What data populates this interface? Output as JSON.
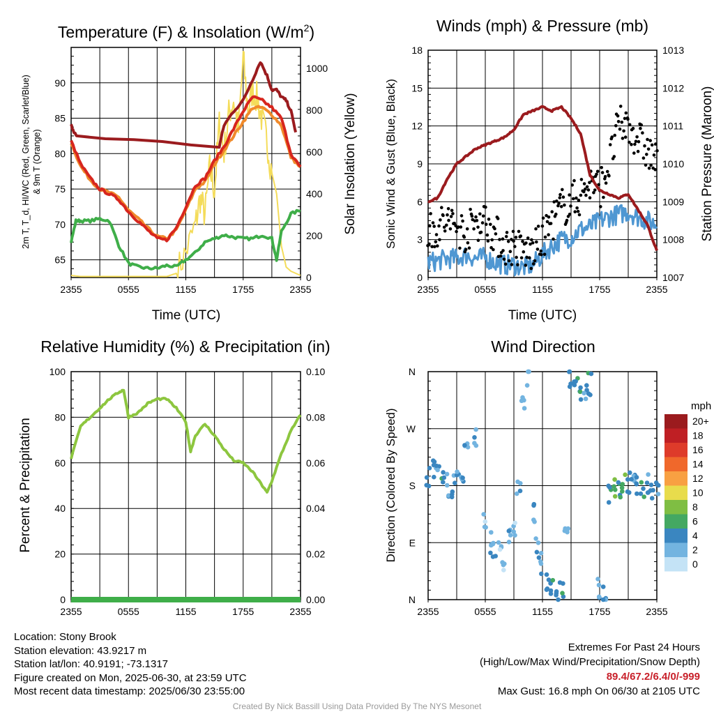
{
  "panels": {
    "temp": {
      "title": "Temperature (F) & Insolation (W/m",
      "title_sup": "2",
      "title_close": ")",
      "ylabel_left_line1": "2m T, T_d, HI/WC (Red, Green, Scarlet/Blue)",
      "ylabel_left_line2": "& 9m T (Orange)",
      "ylabel_right": "Solar Insolation (Yellow)",
      "xlabel": "Time (UTC)"
    },
    "wind": {
      "title": "Winds (mph) & Pressure (mb)",
      "ylabel_left": "Sonic Wind & Gust (Blue, Black)",
      "ylabel_right": "Station Pressure (Maroon)",
      "xlabel": "Time (UTC)"
    },
    "rh": {
      "title": "Relative Humidity (%) & Precipitation (in)",
      "ylabel_left": "Percent & Precipitation"
    },
    "dir": {
      "title": "Wind Direction",
      "ylabel_left": "Direction (Colored By Speed)",
      "legend_title": "mph",
      "legend_labels": [
        "20+",
        "18",
        "16",
        "14",
        "12",
        "10",
        "8",
        "6",
        "4",
        "2",
        "0"
      ],
      "legend_colors": [
        "#9b1b1e",
        "#bf1f24",
        "#de3b2a",
        "#f0682b",
        "#f8a042",
        "#e8dc4c",
        "#7fbe43",
        "#44a862",
        "#3a86c0",
        "#73b4e0",
        "#c4e3f6"
      ]
    }
  },
  "footer": {
    "location": "Location: Stony Brook",
    "elevation": "Station elevation: 43.9217 m",
    "latlon": "Station lat/lon: 40.9191; -73.1317",
    "created": "Figure created on Mon, 2025-06-30, at 23:59 UTC",
    "recent": "Most recent data timestamp: 2025/06/30 23:55:00",
    "extremes_title": "Extremes For Past 24 Hours",
    "extremes_subtitle": "(High/Low/Max Wind/Precipitation/Snow Depth)",
    "extremes_values": "89.4/67.2/6.4/0/-999",
    "max_gust": "Max Gust: 16.8 mph On 06/30 at 2105 UTC",
    "credit": "Created By Nick Bassill Using Data Provided By The NYS Mesonet"
  },
  "chart_data": [
    {
      "type": "line",
      "title": "Temperature (F) & Insolation (W/m2)",
      "xlabel": "Time (UTC)",
      "ylabel": "2m T, Td, HI/WC (Red, Green, Scarlet/Blue) & 9m T (Orange)",
      "y2label": "Solar Insolation (Yellow)",
      "x": [
        "2355",
        "0555",
        "1155",
        "1755",
        "2355"
      ],
      "ylim": [
        62.5,
        95
      ],
      "y2lim": [
        0,
        1100
      ],
      "yticks": [
        65,
        70,
        75,
        80,
        85,
        90
      ],
      "y2ticks": [
        0,
        200,
        400,
        600,
        800,
        1000
      ],
      "grid": true,
      "series": [
        {
          "color": "#d7261e",
          "axis": "left",
          "x": [
            0,
            1,
            2,
            3,
            4,
            5,
            6,
            7,
            8,
            9,
            10,
            11,
            12,
            13,
            14,
            15,
            16,
            17,
            18,
            19,
            20,
            21,
            22,
            23,
            24
          ],
          "values": [
            81.8,
            78.5,
            76.5,
            75,
            74.3,
            73.5,
            71.8,
            70.5,
            69.2,
            68,
            67.8,
            69.5,
            72.5,
            75.5,
            76.5,
            79,
            81,
            83.5,
            86,
            88,
            87.5,
            86.5,
            85,
            80,
            78
          ]
        },
        {
          "color": "#f08a2b",
          "axis": "left",
          "x": [
            0,
            1,
            2,
            3,
            4,
            5,
            6,
            7,
            8,
            9,
            10,
            11,
            12,
            13,
            14,
            15,
            16,
            17,
            18,
            19,
            20,
            21,
            22,
            23,
            24
          ],
          "values": [
            81.5,
            78.2,
            76.3,
            75,
            74.5,
            73.8,
            72,
            70.8,
            69.5,
            68.3,
            68,
            69.2,
            72,
            75,
            76,
            78.5,
            80.5,
            82.5,
            84.5,
            86.5,
            86.5,
            85.5,
            84,
            79.5,
            78
          ]
        },
        {
          "color": "#9b1b1e",
          "axis": "left",
          "x": [
            0,
            0.3,
            0.6,
            15.5,
            16,
            17,
            18,
            19,
            19.8,
            20.5,
            21,
            21.5,
            22,
            22.5,
            23,
            23.5
          ],
          "values": [
            84,
            83,
            82.5,
            81,
            84,
            86,
            87.5,
            90.5,
            93,
            91,
            89,
            89,
            88,
            87.5,
            86,
            83
          ]
        },
        {
          "color": "#3fae49",
          "axis": "left",
          "x": [
            0,
            0.5,
            1,
            2,
            3,
            4,
            5,
            6,
            7,
            8,
            9,
            10,
            11,
            12,
            13,
            14,
            15,
            16,
            17,
            18,
            19,
            20,
            21,
            21.5,
            22,
            23,
            24
          ],
          "values": [
            67.5,
            70.5,
            70.5,
            70.5,
            70.8,
            70.5,
            67,
            64.5,
            64,
            63.8,
            63.8,
            64.2,
            64,
            65,
            66,
            67.5,
            68,
            68.5,
            68.2,
            68,
            68,
            68.5,
            68,
            65,
            69,
            71.5,
            72
          ]
        },
        {
          "color": "#f4dc5a",
          "axis": "right",
          "x": [
            0,
            1,
            2,
            3,
            4,
            5,
            6,
            7,
            8,
            9,
            10,
            11,
            12,
            13,
            13.5,
            14,
            14.5,
            15,
            15.5,
            16,
            16.5,
            17,
            17.5,
            18,
            18.5,
            19,
            19.5,
            20,
            20.5,
            21,
            21.5,
            22,
            22.5,
            23,
            23.5,
            24
          ],
          "values": [
            10,
            5,
            5,
            5,
            5,
            5,
            5,
            5,
            5,
            5,
            5,
            20,
            120,
            250,
            380,
            300,
            520,
            420,
            730,
            600,
            780,
            850,
            700,
            1050,
            800,
            900,
            850,
            750,
            650,
            500,
            400,
            150,
            50,
            30,
            20,
            10
          ]
        }
      ]
    },
    {
      "type": "line",
      "title": "Winds (mph) & Pressure (mb)",
      "xlabel": "Time (UTC)",
      "ylabel": "Sonic Wind & Gust (Blue, Black)",
      "y2label": "Station Pressure (Maroon)",
      "x": [
        "2355",
        "0555",
        "1155",
        "1755",
        "2355"
      ],
      "ylim": [
        0,
        18
      ],
      "y2lim": [
        1007,
        1013
      ],
      "yticks": [
        0,
        3,
        6,
        9,
        12,
        15,
        18
      ],
      "y2ticks": [
        1007,
        1008,
        1009,
        1010,
        1011,
        1012,
        1013
      ],
      "grid": true,
      "series": [
        {
          "color": "#9b1b1e",
          "axis": "right",
          "x": [
            0,
            1,
            2,
            3,
            4,
            5,
            6,
            7,
            8,
            9,
            10,
            11,
            12,
            13,
            14,
            15,
            16,
            17,
            18,
            19,
            20,
            21,
            22,
            23,
            24
          ],
          "values": [
            1009,
            1009.1,
            1009.6,
            1010,
            1010.2,
            1010.4,
            1010.5,
            1010.6,
            1010.7,
            1010.9,
            1011.3,
            1011.4,
            1011.5,
            1011.4,
            1011.5,
            1011.2,
            1010.8,
            1009.7,
            1009.3,
            1009.2,
            1009.1,
            1009.2,
            1008.8,
            1008.4,
            1007.7
          ]
        },
        {
          "color": "#4f97d2",
          "axis": "left",
          "x": [
            0,
            1,
            2,
            3,
            4,
            5,
            6,
            7,
            8,
            9,
            10,
            11,
            12,
            13,
            14,
            15,
            16,
            17,
            18,
            19,
            20,
            21,
            22,
            23,
            24
          ],
          "values": [
            1.2,
            1.3,
            1.5,
            1.5,
            1.8,
            1.5,
            1.6,
            1.2,
            1,
            1,
            0.8,
            1,
            1.8,
            2.5,
            3,
            3.2,
            3.8,
            4,
            4.5,
            4.8,
            5,
            5.2,
            4.8,
            4.5,
            4.2
          ]
        },
        {
          "color": "#000000",
          "axis": "left",
          "x": [
            0,
            1,
            2,
            3,
            4,
            5,
            6,
            7,
            8,
            9,
            10,
            11,
            12,
            13,
            14,
            15,
            16,
            17,
            18,
            19,
            20,
            21,
            22,
            23,
            24
          ],
          "values": [
            3.5,
            4,
            4.5,
            4,
            3.5,
            4.5,
            4.5,
            3.5,
            2.5,
            2.5,
            2,
            2,
            3,
            4.5,
            5.5,
            6,
            6.5,
            7.5,
            7,
            9,
            12,
            12,
            11,
            10,
            9
          ]
        }
      ]
    },
    {
      "type": "line",
      "title": "Relative Humidity (%) & Precipitation (in)",
      "ylabel": "Percent & Precipitation",
      "x": [
        "2355",
        "0555",
        "1155",
        "1755",
        "2355"
      ],
      "ylim": [
        0,
        100
      ],
      "y2lim": [
        0,
        0.1
      ],
      "yticks": [
        0,
        20,
        40,
        60,
        80,
        100
      ],
      "y2ticks": [
        0.0,
        0.02,
        0.04,
        0.06,
        0.08,
        0.1
      ],
      "grid": true,
      "series": [
        {
          "color": "#8dc63f",
          "axis": "left",
          "x": [
            0,
            1,
            2,
            3,
            4,
            5,
            5.5,
            6,
            7,
            8,
            9,
            10,
            11,
            12,
            12.5,
            13,
            14,
            15,
            16,
            17,
            18,
            19,
            20,
            20.5,
            21,
            22,
            23,
            24
          ],
          "values": [
            62,
            76,
            80,
            84,
            88,
            91,
            92,
            80,
            82,
            86,
            88,
            88,
            84,
            78,
            65,
            72,
            77,
            72,
            66,
            61,
            60,
            56,
            50,
            47,
            52,
            64,
            74,
            81
          ]
        },
        {
          "color": "#3fae49",
          "axis": "right",
          "x": [
            0,
            24
          ],
          "values": [
            0,
            0
          ]
        }
      ]
    },
    {
      "type": "scatter",
      "title": "Wind Direction",
      "ylabel": "Direction (Colored By Speed)",
      "x": [
        "2355",
        "0555",
        "1155",
        "1755",
        "2355"
      ],
      "yticks": [
        "N",
        "E",
        "S",
        "W",
        "N"
      ],
      "ylim": [
        0,
        360
      ],
      "grid": true,
      "legend": "right",
      "series": [
        {
          "x": [
            0,
            0.5,
            1,
            1.5,
            2,
            2.5,
            3,
            3.5,
            4,
            5,
            6,
            6.5,
            7,
            7.5,
            8,
            8.5,
            9,
            9.5,
            10,
            10.5,
            11,
            11.5,
            12,
            12.5,
            13,
            13.5,
            14,
            14.5,
            15,
            15.5,
            16,
            16.5,
            17,
            18,
            18.5,
            19,
            19.5,
            20,
            20.5,
            21,
            21.5,
            22,
            22.5,
            23,
            23.5,
            24
          ],
          "values": [
            195,
            205,
            192,
            185,
            180,
            182,
            188,
            178,
            230,
            250,
            130,
            90,
            75,
            80,
            60,
            100,
            120,
            170,
            310,
            355,
            140,
            80,
            60,
            30,
            15,
            5,
            10,
            100,
            350,
            345,
            330,
            320,
            340,
            20,
            10,
            170,
            175,
            180,
            185,
            182,
            178,
            180,
            176,
            183,
            180,
            178
          ],
          "speeds": [
            3,
            3,
            3,
            4,
            3,
            3,
            3,
            3,
            2,
            2,
            1,
            2,
            3,
            1,
            1,
            2,
            1,
            2,
            1,
            1,
            3,
            2,
            2,
            3,
            4,
            3,
            4,
            2,
            4,
            4,
            4,
            3,
            4,
            3,
            3,
            4,
            6,
            4,
            6,
            4,
            3,
            4,
            4,
            3,
            4,
            3
          ]
        }
      ]
    }
  ]
}
